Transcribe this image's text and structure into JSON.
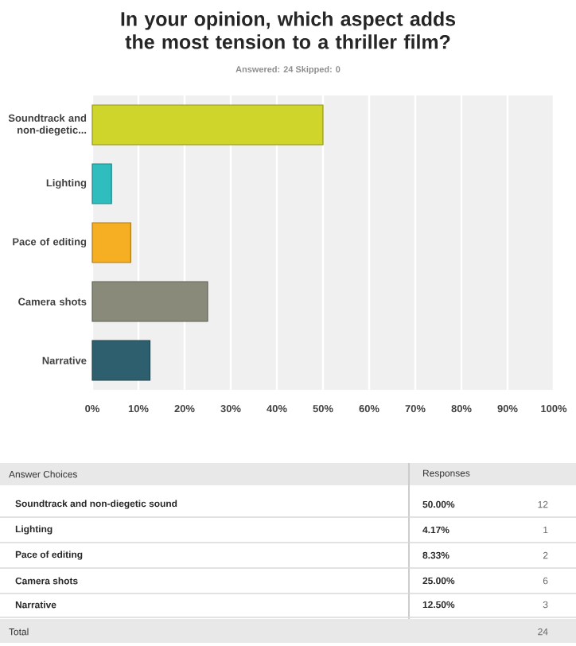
{
  "chart_data": {
    "type": "bar",
    "orientation": "horizontal",
    "title": "In your opinion, which aspect adds the most tension to a thriller film?",
    "subtitle": "Answered: 24    Skipped: 0",
    "categories": [
      "Soundtrack and non-diegetic...",
      "Lighting",
      "Pace of editing",
      "Camera shots",
      "Narrative"
    ],
    "values": [
      50,
      4.17,
      8.33,
      25,
      12.5
    ],
    "colors": [
      "#cfd52a",
      "#2fbdbd",
      "#f6ae22",
      "#8a8a7b",
      "#2e5f6e"
    ],
    "xlim": [
      0,
      100
    ],
    "xticks": [
      {
        "value": 0,
        "label": "0%"
      },
      {
        "value": 10,
        "label": "10%"
      },
      {
        "value": 20,
        "label": "20%"
      },
      {
        "value": 30,
        "label": "30%"
      },
      {
        "value": 40,
        "label": "40%"
      },
      {
        "value": 50,
        "label": "50%"
      },
      {
        "value": 60,
        "label": "60%"
      },
      {
        "value": 70,
        "label": "70%"
      },
      {
        "value": 80,
        "label": "80%"
      },
      {
        "value": 90,
        "label": "90%"
      },
      {
        "value": 100,
        "label": "100%"
      }
    ],
    "grid": "x",
    "annotations": [
      "Answer Choices",
      "Responses",
      "Soundtrack and non-diegetic sound",
      "50.00%",
      "12",
      "4.17%",
      "1",
      "8.33%",
      "2",
      "25.00%",
      "6",
      "12.50%",
      "3",
      "Total",
      "24"
    ]
  }
}
